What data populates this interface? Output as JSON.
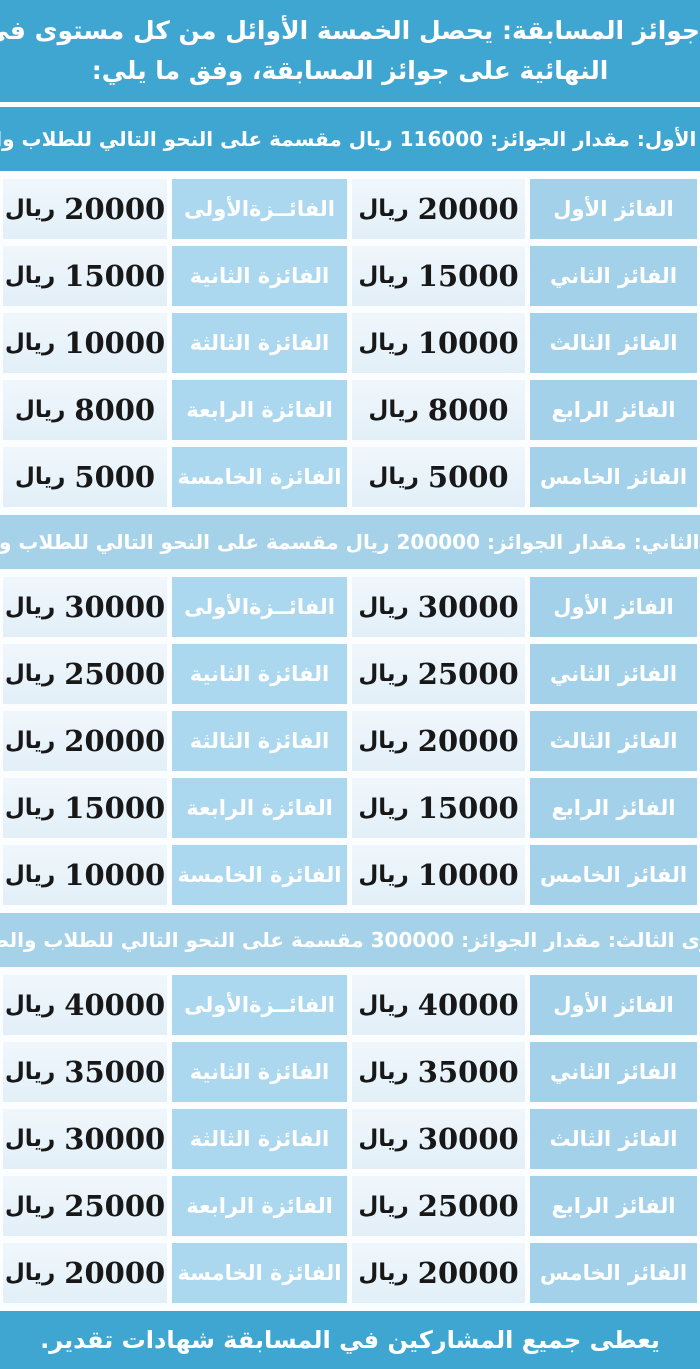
{
  "colors": {
    "band_blue": "#3ea6d1",
    "light_band_blue": "#a6d2e9",
    "male_label_cell_blue": "#a4d1ea",
    "female_label_cell_blue": "#abd7ef",
    "amount_cell_blue": "#e9f3fa",
    "text_dark": "#181818",
    "text_white": "#ffffff"
  },
  "header": {
    "line1": "جوائز المسابقة:  يحصل الخمسة الأوائل من كل مستوى في المرحلة",
    "line2": "النهائية على جوائز المسابقة، وفق ما يلي:"
  },
  "currency_word": "ريال",
  "sections": [
    {
      "title": "المستوى الأول: مقدار الجوائز: 116000 ريال مقسمة على النحو التالي للطلاب والطالبات:",
      "total_prizes": "116000",
      "rows": [
        {
          "male_label": "الفائز الأول",
          "male_amount": "20000",
          "female_label": "الفائــزةالأولى",
          "female_amount": "20000"
        },
        {
          "male_label": "الفائز الثاني",
          "male_amount": "15000",
          "female_label": "الفائزة الثانية",
          "female_amount": "15000"
        },
        {
          "male_label": "الفائز الثالث",
          "male_amount": "10000",
          "female_label": "الفائزة الثالثة",
          "female_amount": "10000"
        },
        {
          "male_label": "الفائز الرابع",
          "male_amount": "8000",
          "female_label": "الفائزة الرابعة",
          "female_amount": "8000"
        },
        {
          "male_label": "الفائز الخامس",
          "male_amount": "5000",
          "female_label": "الفائزة الخامسة",
          "female_amount": "5000"
        }
      ]
    },
    {
      "title": "المستوى الثاني: مقدار الجوائز: 200000 ريال مقسمة على النحو التالي للطلاب والطالبات:",
      "total_prizes": "200000",
      "rows": [
        {
          "male_label": "الفائز الأول",
          "male_amount": "30000",
          "female_label": "الفائــزةالأولى",
          "female_amount": "30000"
        },
        {
          "male_label": "الفائز الثاني",
          "male_amount": "25000",
          "female_label": "الفائزة الثانية",
          "female_amount": "25000"
        },
        {
          "male_label": "الفائز الثالث",
          "male_amount": "20000",
          "female_label": "الفائزة الثالثة",
          "female_amount": "20000"
        },
        {
          "male_label": "الفائز الرابع",
          "male_amount": "15000",
          "female_label": "الفائزة الرابعة",
          "female_amount": "15000"
        },
        {
          "male_label": "الفائز الخامس",
          "male_amount": "10000",
          "female_label": "الفائزة الخامسة",
          "female_amount": "10000"
        }
      ]
    },
    {
      "title": "المستوى الثالث: مقدار الجوائز: 300000 مقسمة على النحو التالي للطلاب والطالبات:",
      "total_prizes": "300000",
      "rows": [
        {
          "male_label": "الفائز الأول",
          "male_amount": "40000",
          "female_label": "الفائــزةالأولى",
          "female_amount": "40000"
        },
        {
          "male_label": "الفائز الثاني",
          "male_amount": "35000",
          "female_label": "الفائزة الثانية",
          "female_amount": "35000"
        },
        {
          "male_label": "الفائز الثالث",
          "male_amount": "30000",
          "female_label": "الفائزة الثالثة",
          "female_amount": "30000"
        },
        {
          "male_label": "الفائز الرابع",
          "male_amount": "25000",
          "female_label": "الفائزة الرابعة",
          "female_amount": "25000"
        },
        {
          "male_label": "الفائز الخامس",
          "male_amount": "20000",
          "female_label": "الفائزة الخامسة",
          "female_amount": "20000"
        }
      ]
    }
  ],
  "footer": {
    "text": "يعطى جميع المشاركين في المسابقة شهادات تقدير."
  }
}
